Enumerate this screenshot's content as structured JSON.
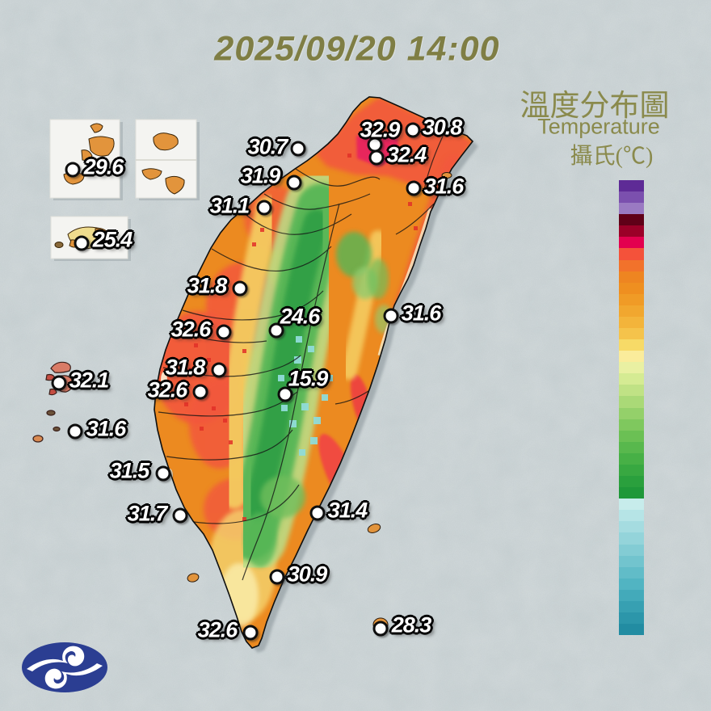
{
  "title": "2025/09/20 14:00",
  "legend": {
    "title_zh": "溫度分布圖",
    "title_en": "Temperature",
    "unit": "攝氏(℃)",
    "ticks": [
      38,
      37,
      35,
      33,
      31,
      29,
      27,
      25,
      23,
      21,
      19,
      17,
      15,
      13,
      11,
      9,
      7,
      5,
      3,
      1,
      -1
    ],
    "scale_top_value": 39,
    "scale_bottom_value": -1,
    "colors_top_to_bottom": [
      "#5e2b96",
      "#7b50ae",
      "#9a7ac2",
      "#600018",
      "#9b0028",
      "#e3004f",
      "#f4523a",
      "#f2722b",
      "#ee8521",
      "#ef8f20",
      "#f09b26",
      "#f1a72f",
      "#f3b43b",
      "#f5c34b",
      "#f7da67",
      "#faec9b",
      "#e9f0a2",
      "#d5eb93",
      "#c0e285",
      "#aad977",
      "#94d06a",
      "#7fc85e",
      "#6bc054",
      "#58b84d",
      "#47b046",
      "#38a841",
      "#2aa03d",
      "#1f9839",
      "#c7eceb",
      "#b6e4e6",
      "#a5dce0",
      "#94d4da",
      "#83ccd4",
      "#72c4ce",
      "#61bcc8",
      "#51b4c2",
      "#43aaba",
      "#37a0b2",
      "#2c96aa",
      "#228ca2"
    ]
  },
  "stations": [
    {
      "value": "29.6",
      "dot": [
        90,
        210
      ],
      "label": [
        128,
        207
      ]
    },
    {
      "value": "25.4",
      "dot": [
        101,
        301
      ],
      "label": [
        139,
        297
      ]
    },
    {
      "value": "30.7",
      "dot": [
        369,
        184
      ],
      "label": [
        331,
        182
      ]
    },
    {
      "value": "32.9",
      "dot": [
        464,
        179
      ],
      "label": [
        470,
        161
      ]
    },
    {
      "value": "30.8",
      "dot": [
        511,
        161
      ],
      "label": [
        547,
        158
      ]
    },
    {
      "value": "32.4",
      "dot": [
        466,
        195
      ],
      "label": [
        503,
        192
      ]
    },
    {
      "value": "31.9",
      "dot": [
        364,
        226
      ],
      "label": [
        322,
        218
      ]
    },
    {
      "value": "31.6",
      "dot": [
        512,
        233
      ],
      "label": [
        549,
        231
      ]
    },
    {
      "value": "31.1",
      "dot": [
        327,
        257
      ],
      "label": [
        284,
        255
      ]
    },
    {
      "value": "31.8",
      "dot": [
        297,
        357
      ],
      "label": [
        256,
        354
      ]
    },
    {
      "value": "24.6",
      "dot": [
        342,
        409
      ],
      "label": [
        371,
        392
      ]
    },
    {
      "value": "31.6",
      "dot": [
        484,
        391
      ],
      "label": [
        521,
        388
      ]
    },
    {
      "value": "32.6",
      "dot": [
        277,
        411
      ],
      "label": [
        236,
        408
      ]
    },
    {
      "value": "31.8",
      "dot": [
        271,
        458
      ],
      "label": [
        229,
        455
      ]
    },
    {
      "value": "32.6",
      "dot": [
        248,
        485
      ],
      "label": [
        207,
        483
      ]
    },
    {
      "value": "15.9",
      "dot": [
        353,
        488
      ],
      "label": [
        381,
        469
      ]
    },
    {
      "value": "32.1",
      "dot": [
        73,
        474
      ],
      "label": [
        110,
        471
      ]
    },
    {
      "value": "31.6",
      "dot": [
        93,
        534
      ],
      "label": [
        131,
        531
      ]
    },
    {
      "value": "31.5",
      "dot": [
        202,
        586
      ],
      "label": [
        160,
        583
      ]
    },
    {
      "value": "31.7",
      "dot": [
        223,
        638
      ],
      "label": [
        182,
        636
      ]
    },
    {
      "value": "31.4",
      "dot": [
        393,
        635
      ],
      "label": [
        430,
        632
      ]
    },
    {
      "value": "30.9",
      "dot": [
        343,
        714
      ],
      "label": [
        380,
        711
      ]
    },
    {
      "value": "32.6",
      "dot": [
        310,
        783
      ],
      "label": [
        269,
        780
      ]
    },
    {
      "value": "28.3",
      "dot": [
        471,
        778
      ],
      "label": [
        509,
        774
      ]
    }
  ],
  "colors": {
    "sea_background": "#c9d2d4",
    "title_text": "#7f7e44",
    "legend_text": "#8a8a4c",
    "tick_text": "#4e4e3c",
    "station_label": "#ffffff",
    "logo_blue": "#2b3e92"
  },
  "chart_data": {
    "type": "heatmap",
    "title": "2025/09/20 14:00",
    "legend_title": "溫度分布圖 / Temperature / 攝氏(℃)",
    "unit": "°C",
    "scale_ticks": [
      38,
      37,
      35,
      33,
      31,
      29,
      27,
      25,
      23,
      21,
      19,
      17,
      15,
      13,
      11,
      9,
      7,
      5,
      3,
      1,
      -1
    ],
    "station_values": [
      29.6,
      25.4,
      30.7,
      32.9,
      30.8,
      32.4,
      31.9,
      31.6,
      31.1,
      31.8,
      24.6,
      31.6,
      32.6,
      31.8,
      32.6,
      15.9,
      32.1,
      31.6,
      31.5,
      31.7,
      31.4,
      30.9,
      32.6,
      28.3
    ]
  }
}
